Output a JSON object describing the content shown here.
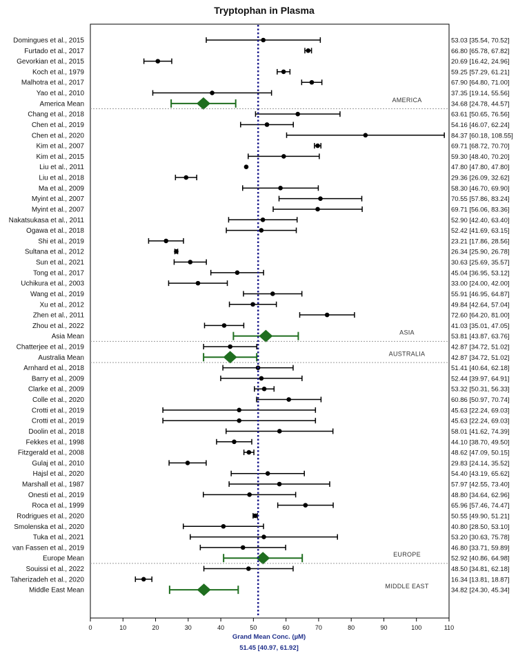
{
  "chart_data": {
    "type": "forest",
    "title": "Tryptophan in Plasma",
    "xlabel": "Grand Mean Conc. (µM)",
    "grand_mean_text": "51.45 [40.97, 61.92]",
    "grand_mean": {
      "mean": 51.45,
      "lo": 40.97,
      "hi": 61.92
    },
    "xlim": [
      0,
      110
    ],
    "xticks": [
      0,
      10,
      20,
      30,
      40,
      50,
      60,
      70,
      80,
      90,
      100,
      110
    ],
    "colors": {
      "study": "#000000",
      "pooled": "#1f6e1f",
      "grand_mean_line": "#1a1a8c",
      "divider": "#9a9a9a"
    },
    "groups": [
      {
        "region": "AMERICA",
        "studies": [
          {
            "label": "Domingues et al., 2015",
            "mean": 53.03,
            "lo": 35.54,
            "hi": 70.52,
            "ci_text": "53.03 [35.54, 70.52]"
          },
          {
            "label": "Furtado et al., 2017",
            "mean": 66.8,
            "lo": 65.78,
            "hi": 67.82,
            "ci_text": "66.80 [65.78, 67.82]"
          },
          {
            "label": "Gevorkian et al., 2015",
            "mean": 20.69,
            "lo": 16.42,
            "hi": 24.96,
            "ci_text": "20.69 [16.42, 24.96]"
          },
          {
            "label": "Koch et al., 1979",
            "mean": 59.25,
            "lo": 57.29,
            "hi": 61.21,
            "ci_text": "59.25 [57.29, 61.21]"
          },
          {
            "label": "Malhotra et al., 2017",
            "mean": 67.9,
            "lo": 64.8,
            "hi": 71.0,
            "ci_text": "67.90 [64.80, 71.00]"
          },
          {
            "label": "Yao et al., 2010",
            "mean": 37.35,
            "lo": 19.14,
            "hi": 55.56,
            "ci_text": "37.35 [19.14, 55.56]"
          }
        ],
        "summary": {
          "label": "America Mean",
          "mean": 34.68,
          "lo": 24.78,
          "hi": 44.57,
          "ci_text": "34.68 [24.78, 44.57]"
        }
      },
      {
        "region": "ASIA",
        "studies": [
          {
            "label": "Chang et al., 2018",
            "mean": 63.61,
            "lo": 50.65,
            "hi": 76.56,
            "ci_text": "63.61 [50.65, 76.56]"
          },
          {
            "label": "Chen et al., 2019",
            "mean": 54.16,
            "lo": 46.07,
            "hi": 62.24,
            "ci_text": "54.16 [46.07, 62.24]"
          },
          {
            "label": "Chen et al., 2020",
            "mean": 84.37,
            "lo": 60.18,
            "hi": 108.55,
            "ci_text": "84.37 [60.18, 108.55]"
          },
          {
            "label": "Kim et al., 2007",
            "mean": 69.71,
            "lo": 68.72,
            "hi": 70.7,
            "ci_text": "69.71 [68.72, 70.70]"
          },
          {
            "label": "Kim et al., 2015",
            "mean": 59.3,
            "lo": 48.4,
            "hi": 70.2,
            "ci_text": "59.30 [48.40, 70.20]"
          },
          {
            "label": "Liu et al., 2011",
            "mean": 47.8,
            "lo": 47.8,
            "hi": 47.8,
            "ci_text": "47.80 [47.80, 47.80]"
          },
          {
            "label": "Liu et al., 2018",
            "mean": 29.36,
            "lo": 26.09,
            "hi": 32.62,
            "ci_text": "29.36 [26.09, 32.62]"
          },
          {
            "label": "Ma et al., 2009",
            "mean": 58.3,
            "lo": 46.7,
            "hi": 69.9,
            "ci_text": "58.30 [46.70, 69.90]"
          },
          {
            "label": "Myint et al., 2007",
            "mean": 70.55,
            "lo": 57.86,
            "hi": 83.24,
            "ci_text": "70.55 [57.86, 83.24]"
          },
          {
            "label": "Myint et al., 2007",
            "mean": 69.71,
            "lo": 56.06,
            "hi": 83.36,
            "ci_text": "69.71 [56.06, 83.36]"
          },
          {
            "label": "Nakatsukasa et al., 2011",
            "mean": 52.9,
            "lo": 42.4,
            "hi": 63.4,
            "ci_text": "52.90 [42.40, 63.40]"
          },
          {
            "label": "Ogawa et al., 2018",
            "mean": 52.42,
            "lo": 41.69,
            "hi": 63.15,
            "ci_text": "52.42 [41.69, 63.15]"
          },
          {
            "label": "Shi et al., 2019",
            "mean": 23.21,
            "lo": 17.86,
            "hi": 28.56,
            "ci_text": "23.21 [17.86, 28.56]"
          },
          {
            "label": "Sultana et al., 2012",
            "mean": 26.34,
            "lo": 25.9,
            "hi": 26.78,
            "ci_text": "26.34 [25.90, 26.78]"
          },
          {
            "label": "Sun et al., 2021",
            "mean": 30.63,
            "lo": 25.69,
            "hi": 35.57,
            "ci_text": "30.63 [25.69, 35.57]"
          },
          {
            "label": "Tong et al., 2017",
            "mean": 45.04,
            "lo": 36.95,
            "hi": 53.12,
            "ci_text": "45.04 [36.95, 53.12]"
          },
          {
            "label": "Uchikura et al., 2003",
            "mean": 33.0,
            "lo": 24.0,
            "hi": 42.0,
            "ci_text": "33.00 [24.00, 42.00]"
          },
          {
            "label": "Wang et al., 2019",
            "mean": 55.91,
            "lo": 46.95,
            "hi": 64.87,
            "ci_text": "55.91 [46.95, 64.87]"
          },
          {
            "label": "Xu et al., 2012",
            "mean": 49.84,
            "lo": 42.64,
            "hi": 57.04,
            "ci_text": "49.84 [42.64, 57.04]"
          },
          {
            "label": "Zhen et al., 2011",
            "mean": 72.6,
            "lo": 64.2,
            "hi": 81.0,
            "ci_text": "72.60 [64.20, 81.00]"
          },
          {
            "label": "Zhou et al., 2022",
            "mean": 41.03,
            "lo": 35.01,
            "hi": 47.05,
            "ci_text": "41.03 [35.01, 47.05]"
          }
        ],
        "summary": {
          "label": "Asia Mean",
          "mean": 53.81,
          "lo": 43.87,
          "hi": 63.76,
          "ci_text": "53.81 [43.87, 63.76]"
        }
      },
      {
        "region": "AUSTRALIA",
        "studies": [
          {
            "label": "Chatterjee et al., 2019",
            "mean": 42.87,
            "lo": 34.72,
            "hi": 51.02,
            "ci_text": "42.87 [34.72, 51.02]"
          }
        ],
        "summary": {
          "label": "Australia Mean",
          "mean": 42.87,
          "lo": 34.72,
          "hi": 51.02,
          "ci_text": "42.87 [34.72, 51.02]"
        }
      },
      {
        "region": "EUROPE",
        "studies": [
          {
            "label": "Arnhard et al., 2018",
            "mean": 51.41,
            "lo": 40.64,
            "hi": 62.18,
            "ci_text": "51.41 [40.64, 62.18]"
          },
          {
            "label": "Barry et al., 2009",
            "mean": 52.44,
            "lo": 39.97,
            "hi": 64.91,
            "ci_text": "52.44 [39.97, 64.91]"
          },
          {
            "label": "Clarke et al., 2009",
            "mean": 53.32,
            "lo": 50.31,
            "hi": 56.33,
            "ci_text": "53.32 [50.31, 56.33]"
          },
          {
            "label": "Colle et al., 2020",
            "mean": 60.86,
            "lo": 50.97,
            "hi": 70.74,
            "ci_text": "60.86 [50.97, 70.74]"
          },
          {
            "label": "Crotti et al., 2019",
            "mean": 45.63,
            "lo": 22.24,
            "hi": 69.03,
            "ci_text": "45.63 [22.24, 69.03]"
          },
          {
            "label": "Crotti et al., 2019",
            "mean": 45.63,
            "lo": 22.24,
            "hi": 69.03,
            "ci_text": "45.63 [22.24, 69.03]"
          },
          {
            "label": "Doolin et al., 2018",
            "mean": 58.01,
            "lo": 41.62,
            "hi": 74.39,
            "ci_text": "58.01 [41.62, 74.39]"
          },
          {
            "label": "Fekkes et al., 1998",
            "mean": 44.1,
            "lo": 38.7,
            "hi": 49.5,
            "ci_text": "44.10 [38.70, 49.50]"
          },
          {
            "label": "Fitzgerald et al., 2008",
            "mean": 48.62,
            "lo": 47.09,
            "hi": 50.15,
            "ci_text": "48.62 [47.09, 50.15]"
          },
          {
            "label": "Gulaj et al., 2010",
            "mean": 29.83,
            "lo": 24.14,
            "hi": 35.52,
            "ci_text": "29.83 [24.14, 35.52]"
          },
          {
            "label": "Hajsl et al., 2020",
            "mean": 54.4,
            "lo": 43.19,
            "hi": 65.62,
            "ci_text": "54.40 [43.19, 65.62]"
          },
          {
            "label": "Marshall et al., 1987",
            "mean": 57.97,
            "lo": 42.55,
            "hi": 73.4,
            "ci_text": "57.97 [42.55, 73.40]"
          },
          {
            "label": "Onesti et al., 2019",
            "mean": 48.8,
            "lo": 34.64,
            "hi": 62.96,
            "ci_text": "48.80 [34.64, 62.96]"
          },
          {
            "label": "Roca et al., 1999",
            "mean": 65.96,
            "lo": 57.46,
            "hi": 74.47,
            "ci_text": "65.96 [57.46, 74.47]"
          },
          {
            "label": "Rodrigues et al., 2020",
            "mean": 50.55,
            "lo": 49.9,
            "hi": 51.21,
            "ci_text": "50.55 [49.90, 51.21]"
          },
          {
            "label": "Smolenska et al., 2020",
            "mean": 40.8,
            "lo": 28.5,
            "hi": 53.1,
            "ci_text": "40.80 [28.50, 53.10]"
          },
          {
            "label": "Tuka et al., 2021",
            "mean": 53.2,
            "lo": 30.63,
            "hi": 75.78,
            "ci_text": "53.20 [30.63, 75.78]"
          },
          {
            "label": "van Fassen et al., 2019",
            "mean": 46.8,
            "lo": 33.71,
            "hi": 59.89,
            "ci_text": "46.80 [33.71, 59.89]"
          }
        ],
        "summary": {
          "label": "Europe Mean",
          "mean": 52.92,
          "lo": 40.86,
          "hi": 64.98,
          "ci_text": "52.92 [40.86, 64.98]"
        }
      },
      {
        "region": "MIDDLE EAST",
        "studies": [
          {
            "label": "Souissi et al., 2022",
            "mean": 48.5,
            "lo": 34.81,
            "hi": 62.18,
            "ci_text": "48.50 [34.81, 62.18]"
          },
          {
            "label": "Taherizadeh et al., 2020",
            "mean": 16.34,
            "lo": 13.81,
            "hi": 18.87,
            "ci_text": "16.34 [13.81, 18.87]"
          }
        ],
        "summary": {
          "label": "Middle East Mean",
          "mean": 34.82,
          "lo": 24.3,
          "hi": 45.34,
          "ci_text": "34.82 [24.30, 45.34]"
        }
      }
    ]
  }
}
